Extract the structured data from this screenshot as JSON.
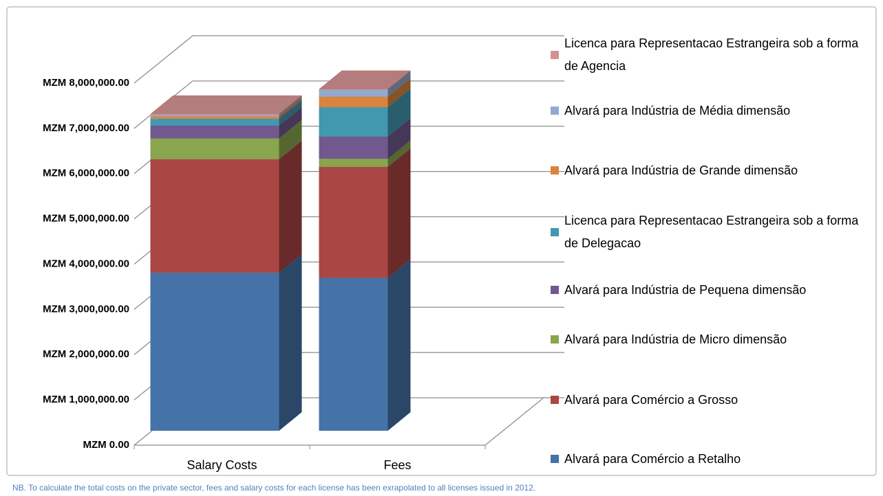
{
  "chart_data": {
    "type": "bar3d_stacked",
    "categories": [
      "Salary Costs",
      "Fees"
    ],
    "series": [
      {
        "name": "Alvará para Comércio a Retalho",
        "color": "#4572a7",
        "values": [
          3490000,
          3380000
        ]
      },
      {
        "name": "Alvará para Comércio a Grosso",
        "color": "#aa4643",
        "values": [
          2510000,
          2450000
        ]
      },
      {
        "name": "Alvará para Indústria de Micro dimensão",
        "color": "#89a54e",
        "values": [
          460000,
          180000
        ]
      },
      {
        "name": "Alvará para Indústria de Pequena dimensão",
        "color": "#71588f",
        "values": [
          280000,
          490000
        ]
      },
      {
        "name": "Licenca para Representacao Estrangeira sob a forma de Delegacao",
        "color": "#4198af",
        "values": [
          150000,
          650000
        ]
      },
      {
        "name": "Alvará para Indústria de Grande dimensão",
        "color": "#db843d",
        "values": [
          50000,
          230000
        ]
      },
      {
        "name": "Alvará para Indústria de Média dimensão",
        "color": "#93a9cf",
        "values": [
          30000,
          150000
        ]
      },
      {
        "name": "Licenca para Representacao Estrangeira sob a forma de Agencia",
        "color": "#d19392",
        "values": [
          30000,
          20000
        ]
      }
    ],
    "ylim": [
      0,
      8000000
    ],
    "yticks": [
      {
        "value": 0,
        "label": "MZM 0.00"
      },
      {
        "value": 1000000,
        "label": "MZM 1,000,000.00"
      },
      {
        "value": 2000000,
        "label": "MZM 2,000,000.00"
      },
      {
        "value": 3000000,
        "label": "MZM 3,000,000.00"
      },
      {
        "value": 4000000,
        "label": "MZM 4,000,000.00"
      },
      {
        "value": 5000000,
        "label": "MZM 5,000,000.00"
      },
      {
        "value": 6000000,
        "label": "MZM 6,000,000.00"
      },
      {
        "value": 7000000,
        "label": "MZM 7,000,000.00"
      },
      {
        "value": 8000000,
        "label": "MZM 8,000,000.00"
      }
    ],
    "grid": true,
    "legend": "right",
    "note": "NB. To calculate the total costs on the private sector, fees and salary costs for each license has been exrapolated to all licenses issued in 2012."
  }
}
